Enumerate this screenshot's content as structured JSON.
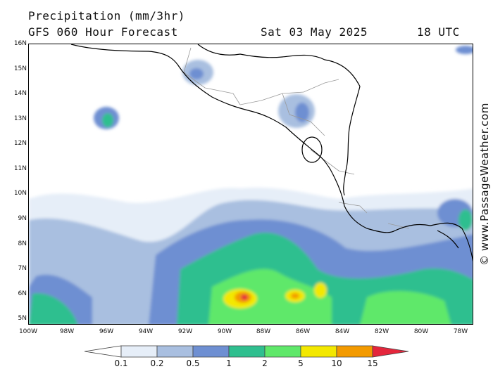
{
  "header": {
    "title": "Precipitation (mm/3hr)",
    "model": "GFS 060 Hour Forecast",
    "date": "Sat 03 May 2025",
    "time": "18 UTC"
  },
  "credit": "© www.PassageWeather.com",
  "axes": {
    "lat_labels": [
      "16N",
      "15N",
      "14N",
      "13N",
      "12N",
      "11N",
      "10N",
      "9N",
      "8N",
      "7N",
      "6N",
      "5N"
    ],
    "lon_labels": [
      "100W",
      "98W",
      "96W",
      "94W",
      "92W",
      "90W",
      "88W",
      "86W",
      "84W",
      "82W",
      "80W",
      "78W"
    ]
  },
  "legend": {
    "labels": [
      "0.1",
      "0.2",
      "0.5",
      "1",
      "2",
      "5",
      "10",
      "15"
    ],
    "colors": [
      "#ffffff",
      "#e6eef8",
      "#a9bfe0",
      "#6e8fd2",
      "#2fbf8f",
      "#5fe86a",
      "#f3e800",
      "#f39a00",
      "#e4263c"
    ]
  },
  "map": {
    "region": "Central America / Eastern Pacific",
    "colors": {
      "land_outline": "#000000",
      "borders": "#9a9a9a"
    }
  }
}
